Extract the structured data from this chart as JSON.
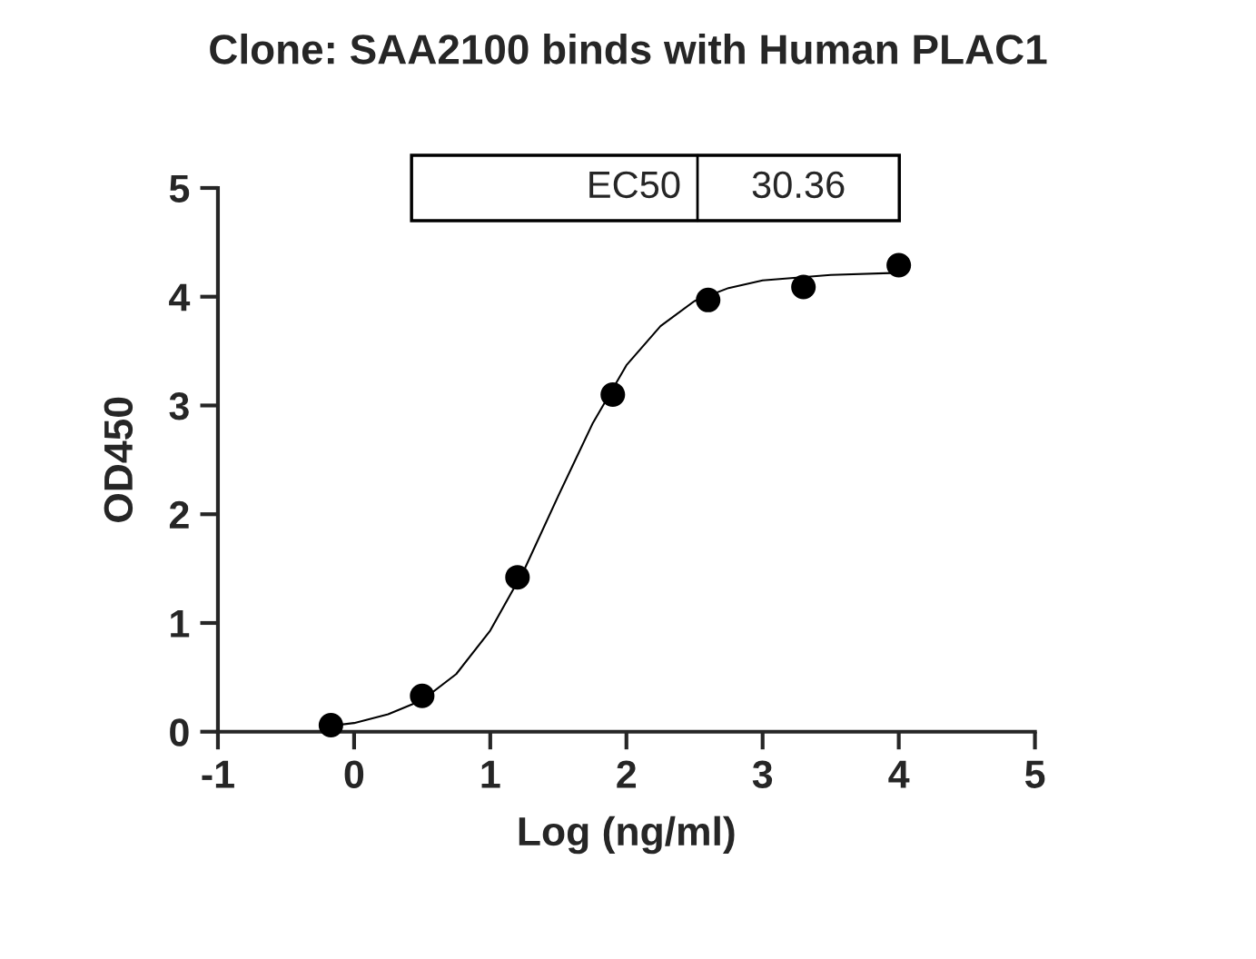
{
  "chart_data": {
    "type": "scatter",
    "title": "Clone: SAA2100 binds with Human PLAC1",
    "xlabel": "Log (ng/ml)",
    "ylabel": "OD450",
    "series": [
      {
        "color": "#000000",
        "marker": "circle",
        "x": [
          -0.17,
          0.5,
          1.2,
          1.9,
          2.6,
          3.3,
          4.0
        ],
        "values": [
          0.06,
          0.33,
          1.42,
          3.1,
          3.97,
          4.09,
          4.29
        ]
      },
      {
        "type": "line",
        "marker": "none",
        "color": "#000000",
        "x": [
          -0.2,
          0,
          0.25,
          0.5,
          0.75,
          1,
          1.25,
          1.5,
          1.75,
          2,
          2.25,
          2.5,
          2.75,
          3,
          3.5,
          4
        ],
        "values": [
          0.05,
          0.08,
          0.16,
          0.29,
          0.53,
          0.93,
          1.49,
          2.17,
          2.83,
          3.37,
          3.73,
          3.96,
          4.08,
          4.15,
          4.2,
          4.22
        ]
      }
    ],
    "annotations": [
      "EC50",
      "30.36"
    ],
    "xlim": [
      -1,
      5
    ],
    "xticks": [
      -1,
      0,
      1,
      2,
      3,
      4,
      5
    ],
    "ylim": [
      0,
      5
    ],
    "yticks": [
      0,
      1,
      2,
      3,
      4,
      5
    ],
    "grid": false,
    "legend": false
  }
}
